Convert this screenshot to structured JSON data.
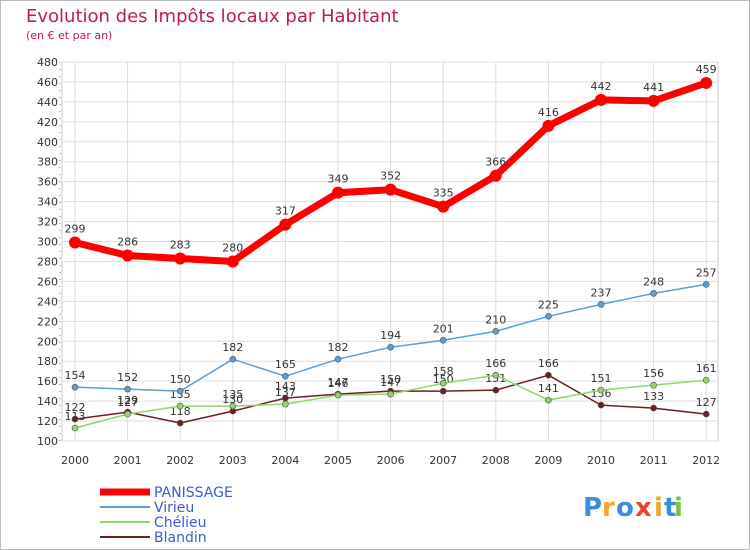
{
  "chart_data": {
    "type": "line",
    "title": "Evolution des Impôts locaux par Habitant",
    "subtitle": "(en € et par an)",
    "categories": [
      "2000",
      "2001",
      "2002",
      "2003",
      "2004",
      "2005",
      "2006",
      "2007",
      "2008",
      "2009",
      "2010",
      "2011",
      "2012"
    ],
    "ylim": [
      100,
      480
    ],
    "yticks": [
      100,
      120,
      140,
      160,
      180,
      200,
      220,
      240,
      260,
      280,
      300,
      320,
      340,
      360,
      380,
      400,
      420,
      440,
      460,
      480
    ],
    "grid": true,
    "legend_position": "bottom-left",
    "series": [
      {
        "name": "PANISSAGE",
        "color": "#ff0000",
        "values": [
          299,
          286,
          283,
          280,
          317,
          349,
          352,
          335,
          366,
          416,
          442,
          441,
          459
        ],
        "labels": [
          "299",
          "286",
          "283",
          "280",
          "317",
          "349",
          "352",
          "335",
          "366",
          "416",
          "442",
          "441",
          "459"
        ]
      },
      {
        "name": "Virieu",
        "color": "#5a9fd4",
        "values": [
          154,
          152,
          150,
          182,
          165,
          182,
          194,
          201,
          210,
          225,
          237,
          248,
          257
        ],
        "labels": [
          "154",
          "152",
          "150",
          "182",
          "165",
          "182",
          "194",
          "201",
          "210",
          "225",
          "237",
          "248",
          "257"
        ]
      },
      {
        "name": "Chélieu",
        "color": "#8ed66b",
        "values": [
          113,
          127,
          135,
          135,
          137,
          146,
          147,
          158,
          166,
          141,
          151,
          156,
          161
        ],
        "labels": [
          "113",
          "127",
          "135",
          "135",
          "137",
          "146",
          "147",
          "158",
          "166",
          "141",
          "151",
          "156",
          "161"
        ]
      },
      {
        "name": "Blandin",
        "color": "#6b1f1f",
        "values": [
          122,
          129,
          118,
          130,
          143,
          147,
          150,
          150,
          151,
          166,
          136,
          133,
          127
        ],
        "labels": [
          "122",
          "129",
          "118",
          "130",
          "143",
          "147",
          "150",
          "150",
          "151",
          "166",
          "136",
          "133",
          "127"
        ]
      }
    ]
  },
  "branding": {
    "letters": [
      "P",
      "r",
      "o",
      "x",
      "i",
      "t",
      "i"
    ],
    "colors": [
      "#3a8fd9",
      "#f5a623",
      "#3a8fd9",
      "#e8452c",
      "#f5a623",
      "#3a8fd9",
      "#7bc142"
    ]
  }
}
